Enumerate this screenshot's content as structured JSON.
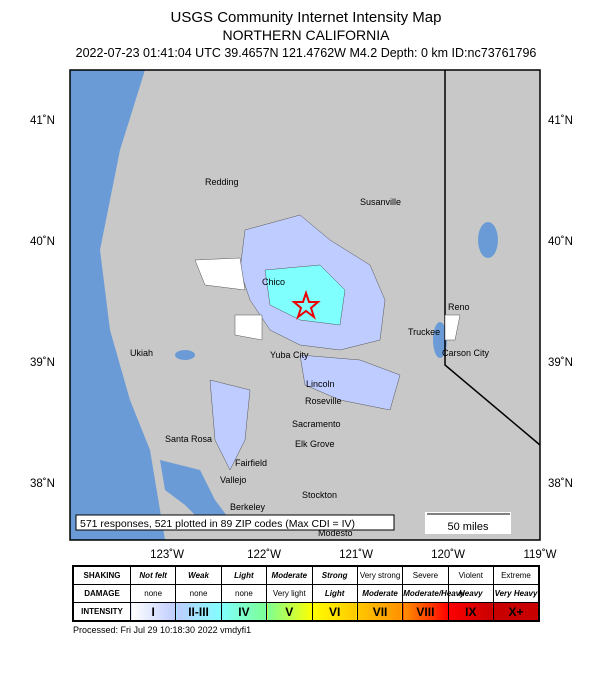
{
  "title": "USGS Community Internet Intensity Map",
  "region": "NORTHERN CALIFORNIA",
  "event_line": "2022-07-23 01:41:04 UTC 39.4657N 121.4762W M4.2 Depth: 0 km ID:nc73761796",
  "lat_labels": [
    "41˚N",
    "40˚N",
    "39˚N",
    "38˚N"
  ],
  "lon_labels": [
    "123˚W",
    "122˚W",
    "121˚W",
    "120˚W",
    "119˚W"
  ],
  "cities": [
    "Redding",
    "Susanville",
    "Chico",
    "Reno",
    "Truckee",
    "Carson City",
    "Ukiah",
    "Yuba City",
    "Lincoln",
    "Roseville",
    "Sacramento",
    "Elk Grove",
    "Santa Rosa",
    "Fairfield",
    "Vallejo",
    "Berkeley",
    "Stockton",
    "Modesto"
  ],
  "summary": "571 responses, 521 plotted in 89 ZIP codes (Max CDI = IV)",
  "scale_label": "50 miles",
  "epicenter_icon": "red-star-icon",
  "legend": {
    "row_headers": [
      "SHAKING",
      "DAMAGE",
      "INTENSITY"
    ],
    "shaking": [
      "Not felt",
      "Weak",
      "Light",
      "Moderate",
      "Strong",
      "Very strong",
      "Severe",
      "Violent",
      "Extreme"
    ],
    "damage": [
      "none",
      "none",
      "none",
      "Very light",
      "Light",
      "Moderate",
      "Moderate/Heavy",
      "Heavy",
      "Very Heavy"
    ],
    "intensity": [
      "I",
      "II-III",
      "IV",
      "V",
      "VI",
      "VII",
      "VIII",
      "IX",
      "X+"
    ],
    "colors": [
      "#ffffff",
      "#bfccff",
      "#80ffff",
      "#7cff93",
      "#ffff00",
      "#ffc800",
      "#ff9100",
      "#ff0000",
      "#c80000"
    ]
  },
  "processed": "Processed: Fri Jul 29 10:18:30 2022 vmdyfi1"
}
